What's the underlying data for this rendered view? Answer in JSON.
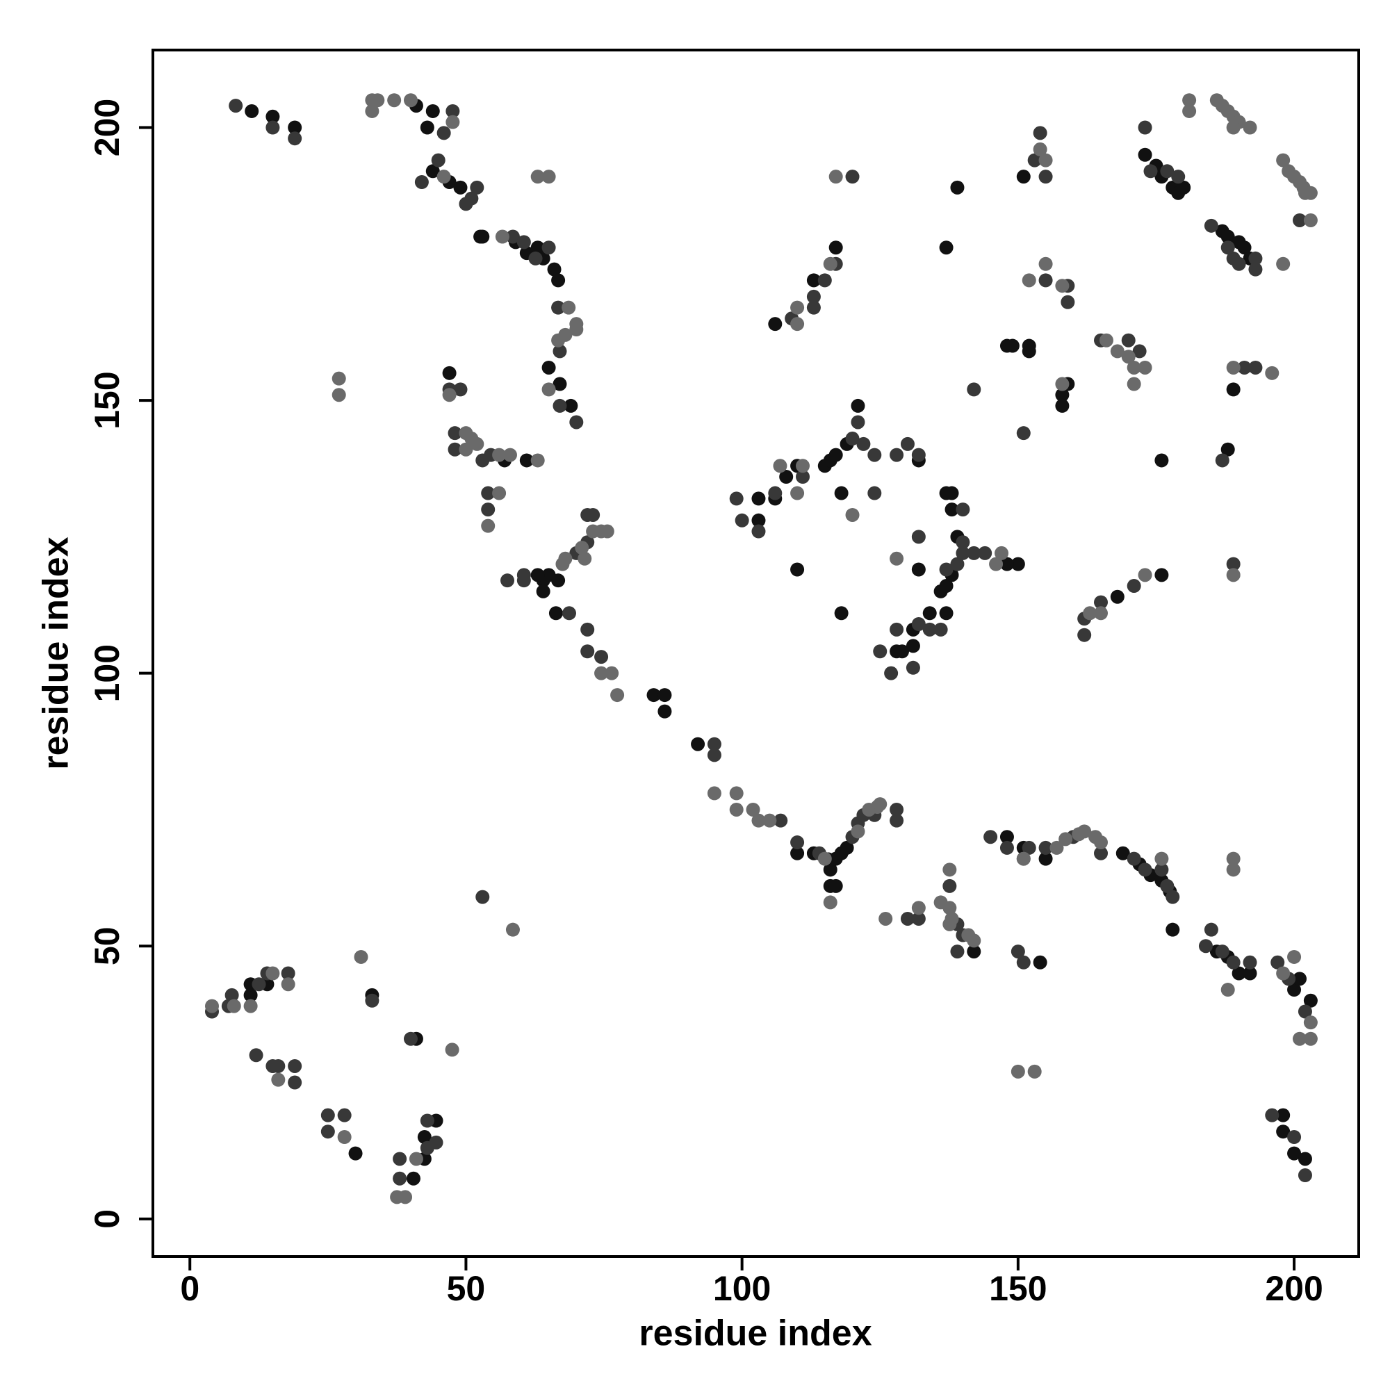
{
  "chart_data": {
    "type": "scatter",
    "xlabel": "residue index",
    "ylabel": "residue index",
    "xlim": [
      -6.7,
      211.7
    ],
    "ylim": [
      -6.9,
      214.2
    ],
    "xticks": [
      0,
      50,
      100,
      150,
      200
    ],
    "yticks": [
      0,
      50,
      100,
      150,
      200
    ],
    "series": [
      {
        "color": "#111111",
        "x": [
          11.2,
          15,
          19,
          41,
          43,
          44,
          44,
          47,
          49,
          52.6,
          59,
          61,
          63,
          64,
          66,
          66.7,
          65,
          67,
          69,
          47,
          64,
          65,
          66.7,
          64,
          66.3,
          63,
          84,
          86,
          86,
          92,
          110,
          113,
          115.6,
          116,
          117,
          118,
          119,
          116,
          117,
          148,
          151,
          155,
          154,
          169,
          172,
          174,
          176,
          177.5,
          178,
          186,
          188,
          190,
          192,
          200,
          201,
          203,
          198,
          198,
          200,
          202,
          11,
          11,
          14,
          30,
          33,
          41,
          40.5,
          42.5,
          42.5,
          44.6,
          103,
          106,
          103,
          108,
          110,
          110,
          115,
          116,
          117,
          118,
          118,
          121,
          119,
          132,
          132,
          137,
          138,
          138,
          139,
          136,
          137,
          138,
          137,
          134,
          131,
          129,
          128,
          131,
          142,
          148,
          149,
          152,
          152,
          158,
          159,
          158,
          137,
          139,
          151,
          117,
          113,
          106,
          173,
          175,
          176,
          178,
          179,
          180,
          187,
          188,
          190,
          191,
          192,
          189,
          188,
          176,
          176,
          168,
          150,
          148,
          53,
          61,
          57
        ],
        "y": [
          203,
          202,
          200,
          204,
          200,
          203,
          192,
          190,
          189,
          180,
          179,
          177,
          178,
          176,
          174,
          172,
          156,
          153,
          149,
          155,
          117,
          118,
          117,
          115,
          111,
          118,
          96,
          96,
          93,
          87,
          67,
          67,
          65.9,
          64,
          66,
          67,
          68,
          61,
          61,
          70,
          68,
          66,
          47,
          67,
          65,
          63,
          62,
          60,
          53,
          49,
          48,
          45,
          45,
          42,
          44,
          40,
          19,
          16,
          12,
          11,
          41,
          43,
          43,
          12,
          41,
          33,
          7.4,
          11,
          15,
          18,
          132,
          132,
          128,
          136,
          119,
          138,
          138,
          139,
          140,
          133,
          111,
          149,
          142,
          139,
          119,
          133,
          133,
          130,
          125,
          115,
          116,
          118,
          111,
          111,
          108,
          104,
          104,
          105,
          49,
          160,
          160,
          160,
          159,
          151,
          153,
          149,
          178,
          189,
          191,
          178,
          172,
          164,
          195,
          193,
          191,
          189,
          188,
          189,
          181,
          180,
          179,
          178,
          176,
          152,
          141,
          139,
          118,
          114,
          120,
          120,
          180,
          139,
          139
        ]
      },
      {
        "color": "#383838",
        "x": [
          8.3,
          15,
          19,
          42,
          45,
          46,
          47.6,
          50,
          51,
          52,
          58.5,
          60.5,
          62.6,
          65,
          66.7,
          67,
          70,
          67,
          47,
          49,
          48,
          48,
          53,
          54.5,
          54,
          54,
          57.5,
          60.5,
          60.5,
          68.7,
          70,
          72,
          73,
          72,
          72,
          72,
          74.5,
          95,
          95,
          107,
          110,
          114,
          120,
          121,
          122,
          124,
          128,
          128,
          137.6,
          139,
          140,
          139,
          130,
          132,
          145,
          148,
          152,
          155,
          151,
          150,
          151,
          160,
          165,
          171,
          173,
          176,
          177,
          178,
          184,
          185,
          187,
          189,
          192,
          197,
          199,
          202,
          196,
          200,
          202,
          4,
          7,
          7.6,
          12.5,
          14,
          17.8,
          12,
          15,
          16,
          19,
          19,
          25,
          25,
          28,
          33,
          40,
          38,
          38,
          43,
          44.6,
          43,
          53,
          100,
          99,
          103,
          106,
          111,
          120,
          121,
          122,
          124,
          128,
          132,
          130,
          132,
          124,
          140,
          140,
          140,
          142,
          144,
          137,
          139,
          136,
          134,
          132,
          128,
          125,
          127,
          131,
          142,
          151,
          153,
          154,
          155,
          155,
          159,
          159,
          165,
          170,
          172,
          173,
          174,
          177,
          179,
          185,
          190,
          193,
          193,
          188,
          187,
          189,
          162,
          162,
          165,
          171,
          109,
          113,
          113,
          115,
          117,
          120,
          201,
          193,
          191,
          189
        ],
        "y": [
          204,
          200,
          198,
          190,
          194,
          199,
          203,
          186,
          187,
          189,
          180,
          179,
          176,
          178,
          167,
          159,
          146,
          149,
          152,
          152,
          144,
          141,
          139,
          140,
          133,
          130,
          117,
          118,
          117,
          111,
          122,
          124,
          129,
          129,
          108,
          104,
          103,
          87,
          85,
          73,
          69,
          67,
          70,
          72.5,
          74,
          74,
          73,
          75,
          61,
          54,
          52,
          49,
          55,
          55,
          70,
          68,
          68,
          68,
          66,
          49,
          47,
          70,
          67,
          66,
          64,
          64,
          61,
          59,
          50,
          53,
          49,
          47,
          47,
          47,
          44,
          38,
          19,
          15,
          8,
          38,
          39,
          41,
          43,
          45,
          45,
          30,
          28,
          28,
          28,
          25,
          19,
          16,
          19,
          40,
          33,
          7.4,
          11,
          18,
          14,
          13,
          59,
          128,
          132,
          126,
          133,
          136,
          143,
          146,
          142,
          140,
          140,
          140,
          142,
          125,
          133,
          130,
          124,
          122,
          122,
          122,
          119,
          120,
          108,
          108,
          109,
          108,
          104,
          100,
          101,
          152,
          144,
          194,
          199,
          191,
          172,
          168,
          171,
          161,
          161,
          159,
          200,
          192,
          192,
          191,
          182,
          175,
          174,
          176,
          178,
          139,
          120,
          110,
          107,
          113,
          116,
          165,
          169,
          167,
          172,
          175,
          191,
          183,
          156,
          156,
          176
        ]
      },
      {
        "color": "#6a6a6a",
        "x": [
          33,
          34,
          37,
          40,
          33,
          47.6,
          46,
          56.6,
          63,
          65,
          68.6,
          70,
          68,
          66.7,
          70,
          65,
          27,
          27,
          47,
          50,
          51,
          52,
          50,
          56,
          58,
          63,
          56,
          54,
          67.5,
          68,
          71,
          73,
          74.5,
          75.6,
          71.5,
          74.5,
          76.4,
          77.4,
          95,
          99,
          99,
          102,
          103,
          105,
          115,
          116,
          121,
          123,
          124.5,
          125,
          137.6,
          136,
          137.6,
          138,
          137.6,
          141,
          142,
          126,
          132,
          151,
          150,
          153,
          157,
          158.6,
          161,
          162,
          164,
          165,
          176,
          188,
          189,
          189,
          198,
          200,
          201,
          203,
          203,
          4,
          8,
          11,
          15,
          17.8,
          16,
          28,
          31,
          47.5,
          37.5,
          39,
          41,
          58.5,
          106.9,
          110,
          111,
          120,
          128,
          146,
          147,
          154,
          155,
          152,
          155,
          158,
          158,
          166,
          168,
          170,
          171,
          171,
          173,
          173,
          163,
          165,
          181,
          181,
          186,
          187,
          188,
          189,
          190,
          192,
          189,
          198,
          199,
          200,
          201,
          201.7,
          202,
          203,
          203,
          198,
          196,
          189,
          189,
          110,
          110,
          117,
          116
        ],
        "y": [
          205,
          205,
          205,
          205,
          203,
          201,
          191,
          180,
          191,
          191,
          167,
          164,
          162,
          161,
          163,
          152,
          154,
          151,
          151,
          144,
          143,
          142,
          141,
          140,
          140,
          139,
          133,
          127,
          120,
          121,
          123,
          126,
          126,
          126,
          121,
          100,
          100,
          96,
          78,
          78,
          75,
          75,
          73,
          73,
          66,
          58,
          71,
          75,
          75.5,
          76,
          64,
          58,
          57,
          55,
          54,
          52,
          51,
          55,
          57,
          66,
          27,
          27,
          68,
          69.6,
          70.5,
          71,
          70,
          69,
          66,
          42,
          66,
          64,
          45,
          48,
          33,
          33,
          36,
          39,
          39,
          39,
          45,
          43,
          25.5,
          15,
          48,
          31,
          4,
          4,
          11,
          53,
          138,
          133,
          138,
          129,
          121,
          120,
          122,
          196,
          194,
          172,
          175,
          171,
          153,
          161,
          159,
          158,
          153,
          156,
          156,
          118,
          111,
          111,
          205,
          203,
          205,
          204,
          203,
          202,
          201,
          200,
          200,
          194,
          192,
          191,
          190,
          189,
          188,
          188,
          183,
          175,
          155,
          156,
          118,
          164,
          167,
          191,
          175
        ]
      }
    ]
  }
}
